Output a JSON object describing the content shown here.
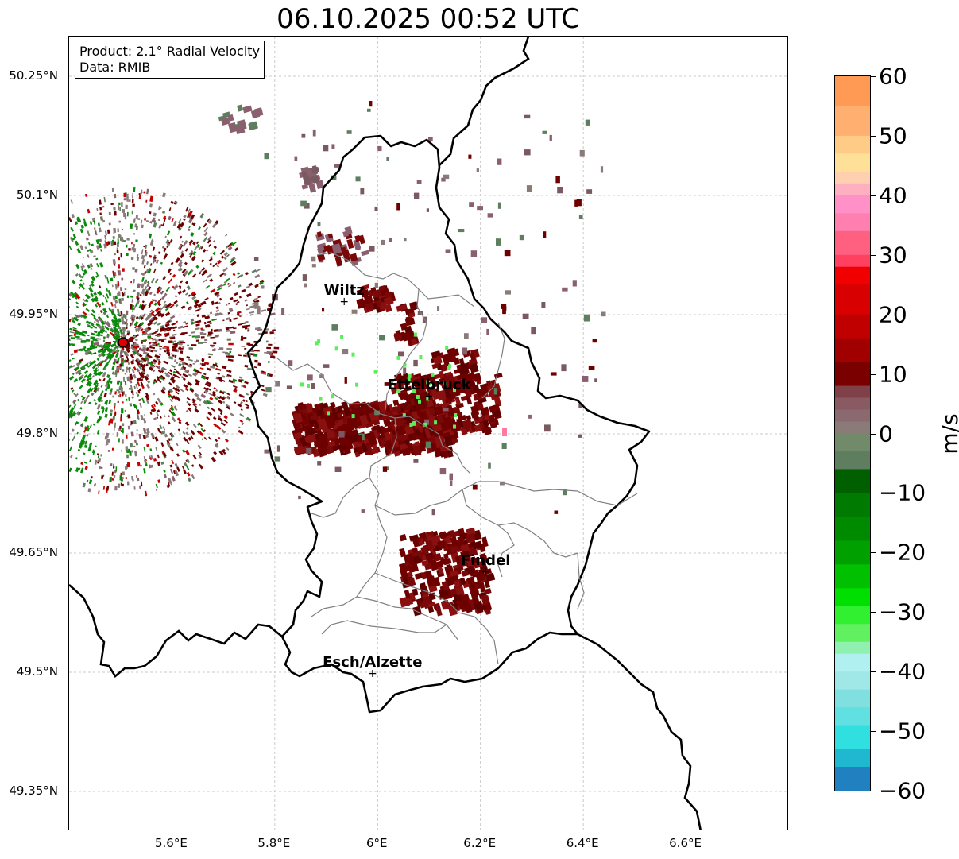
{
  "title": "06.10.2025 00:52 UTC",
  "info": {
    "product": "Product: 2.1° Radial Velocity",
    "source": "Data: RMIB"
  },
  "map": {
    "lon_range": [
      5.4,
      6.8
    ],
    "lat_range": [
      49.3,
      50.3
    ],
    "lat_ticks": [
      "50.25°N",
      "50.1°N",
      "49.95°N",
      "49.8°N",
      "49.65°N",
      "49.5°N",
      "49.35°N"
    ],
    "lon_ticks": [
      "5.6°E",
      "5.8°E",
      "6°E",
      "6.2°E",
      "6.4°E",
      "6.6°E"
    ],
    "grid": true,
    "radar_site": {
      "lon": 5.505,
      "lat": 49.915,
      "color": "#e00000"
    },
    "cities": [
      {
        "name": "Wiltz",
        "lon": 5.935,
        "lat": 49.967
      },
      {
        "name": "Ettelbruck",
        "lon": 6.1,
        "lat": 49.848
      },
      {
        "name": "Findel",
        "lon": 6.21,
        "lat": 49.627
      },
      {
        "name": "Esch/Alzette",
        "lon": 5.99,
        "lat": 49.499
      }
    ]
  },
  "colorbar": {
    "label": "m/s",
    "min": -60,
    "max": 60,
    "ticks": [
      "60",
      "50",
      "40",
      "30",
      "20",
      "10",
      "0",
      "−10",
      "−20",
      "−30",
      "−40",
      "−50",
      "−60"
    ],
    "colors": {
      "dark_red": "#6e0000",
      "red": "#c80000",
      "grey": "#8a7a78",
      "green": "#0a8a0a",
      "light_green": "#5aee5a",
      "pink": "#ff7aa0"
    }
  }
}
